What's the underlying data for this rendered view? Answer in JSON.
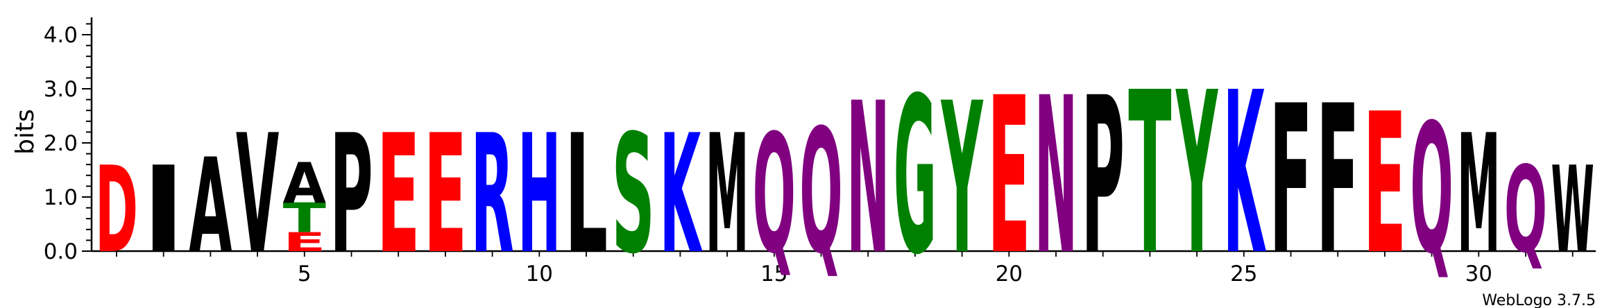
{
  "chart_data": {
    "type": "sequence-logo",
    "ylabel": "bits",
    "ylim": [
      0,
      4.3
    ],
    "yticks": [
      "0.0",
      "1.0",
      "2.0",
      "3.0",
      "4.0"
    ],
    "xticks": [
      "5",
      "10",
      "15",
      "20",
      "25",
      "30"
    ],
    "credit": "WebLogo 3.7.5",
    "color_scheme": {
      "D": "#ff0000",
      "E": "#ff0000",
      "K": "#0000ff",
      "R": "#0000ff",
      "H": "#0000ff",
      "S": "#008000",
      "T": "#008000",
      "Y": "#008000",
      "G": "#008000",
      "N": "#800080",
      "Q": "#800080",
      "A": "#000000",
      "V": "#000000",
      "L": "#000000",
      "I": "#000000",
      "P": "#000000",
      "F": "#000000",
      "M": "#000000",
      "W": "#000000"
    },
    "positions": [
      {
        "pos": 1,
        "stack": [
          {
            "letter": "D",
            "height": 1.6
          }
        ]
      },
      {
        "pos": 2,
        "stack": [
          {
            "letter": "I",
            "height": 1.6
          }
        ]
      },
      {
        "pos": 3,
        "stack": [
          {
            "letter": "A",
            "height": 1.75
          }
        ]
      },
      {
        "pos": 4,
        "stack": [
          {
            "letter": "V",
            "height": 2.2
          }
        ]
      },
      {
        "pos": 5,
        "stack": [
          {
            "letter": "E",
            "height": 0.35
          },
          {
            "letter": "T",
            "height": 0.55
          },
          {
            "letter": "A",
            "height": 0.75
          }
        ]
      },
      {
        "pos": 6,
        "stack": [
          {
            "letter": "P",
            "height": 2.2
          }
        ]
      },
      {
        "pos": 7,
        "stack": [
          {
            "letter": "E",
            "height": 2.2
          }
        ]
      },
      {
        "pos": 8,
        "stack": [
          {
            "letter": "E",
            "height": 2.2
          }
        ]
      },
      {
        "pos": 9,
        "stack": [
          {
            "letter": "R",
            "height": 2.2
          }
        ]
      },
      {
        "pos": 10,
        "stack": [
          {
            "letter": "H",
            "height": 2.2
          }
        ]
      },
      {
        "pos": 11,
        "stack": [
          {
            "letter": "L",
            "height": 2.2
          }
        ]
      },
      {
        "pos": 12,
        "stack": [
          {
            "letter": "S",
            "height": 2.2
          }
        ]
      },
      {
        "pos": 13,
        "stack": [
          {
            "letter": "K",
            "height": 2.2
          }
        ]
      },
      {
        "pos": 14,
        "stack": [
          {
            "letter": "M",
            "height": 2.2
          }
        ]
      },
      {
        "pos": 15,
        "stack": [
          {
            "letter": "Q",
            "height": 2.2
          }
        ]
      },
      {
        "pos": 16,
        "stack": [
          {
            "letter": "Q",
            "height": 2.3
          }
        ]
      },
      {
        "pos": 17,
        "stack": [
          {
            "letter": "N",
            "height": 2.8
          }
        ]
      },
      {
        "pos": 18,
        "stack": [
          {
            "letter": "G",
            "height": 2.9
          }
        ]
      },
      {
        "pos": 19,
        "stack": [
          {
            "letter": "Y",
            "height": 2.8
          }
        ]
      },
      {
        "pos": 20,
        "stack": [
          {
            "letter": "E",
            "height": 2.9
          }
        ]
      },
      {
        "pos": 21,
        "stack": [
          {
            "letter": "N",
            "height": 2.9
          }
        ]
      },
      {
        "pos": 22,
        "stack": [
          {
            "letter": "P",
            "height": 2.9
          }
        ]
      },
      {
        "pos": 23,
        "stack": [
          {
            "letter": "T",
            "height": 3.0
          }
        ]
      },
      {
        "pos": 24,
        "stack": [
          {
            "letter": "Y",
            "height": 3.0
          }
        ]
      },
      {
        "pos": 25,
        "stack": [
          {
            "letter": "K",
            "height": 3.0
          }
        ]
      },
      {
        "pos": 26,
        "stack": [
          {
            "letter": "F",
            "height": 2.75
          }
        ]
      },
      {
        "pos": 27,
        "stack": [
          {
            "letter": "F",
            "height": 2.75
          }
        ]
      },
      {
        "pos": 28,
        "stack": [
          {
            "letter": "E",
            "height": 2.6
          }
        ]
      },
      {
        "pos": 29,
        "stack": [
          {
            "letter": "Q",
            "height": 2.4
          }
        ]
      },
      {
        "pos": 30,
        "stack": [
          {
            "letter": "M",
            "height": 2.2
          }
        ]
      },
      {
        "pos": 31,
        "stack": [
          {
            "letter": "Q",
            "height": 1.6
          }
        ]
      },
      {
        "pos": 32,
        "stack": [
          {
            "letter": "W",
            "height": 1.6
          }
        ]
      }
    ]
  }
}
